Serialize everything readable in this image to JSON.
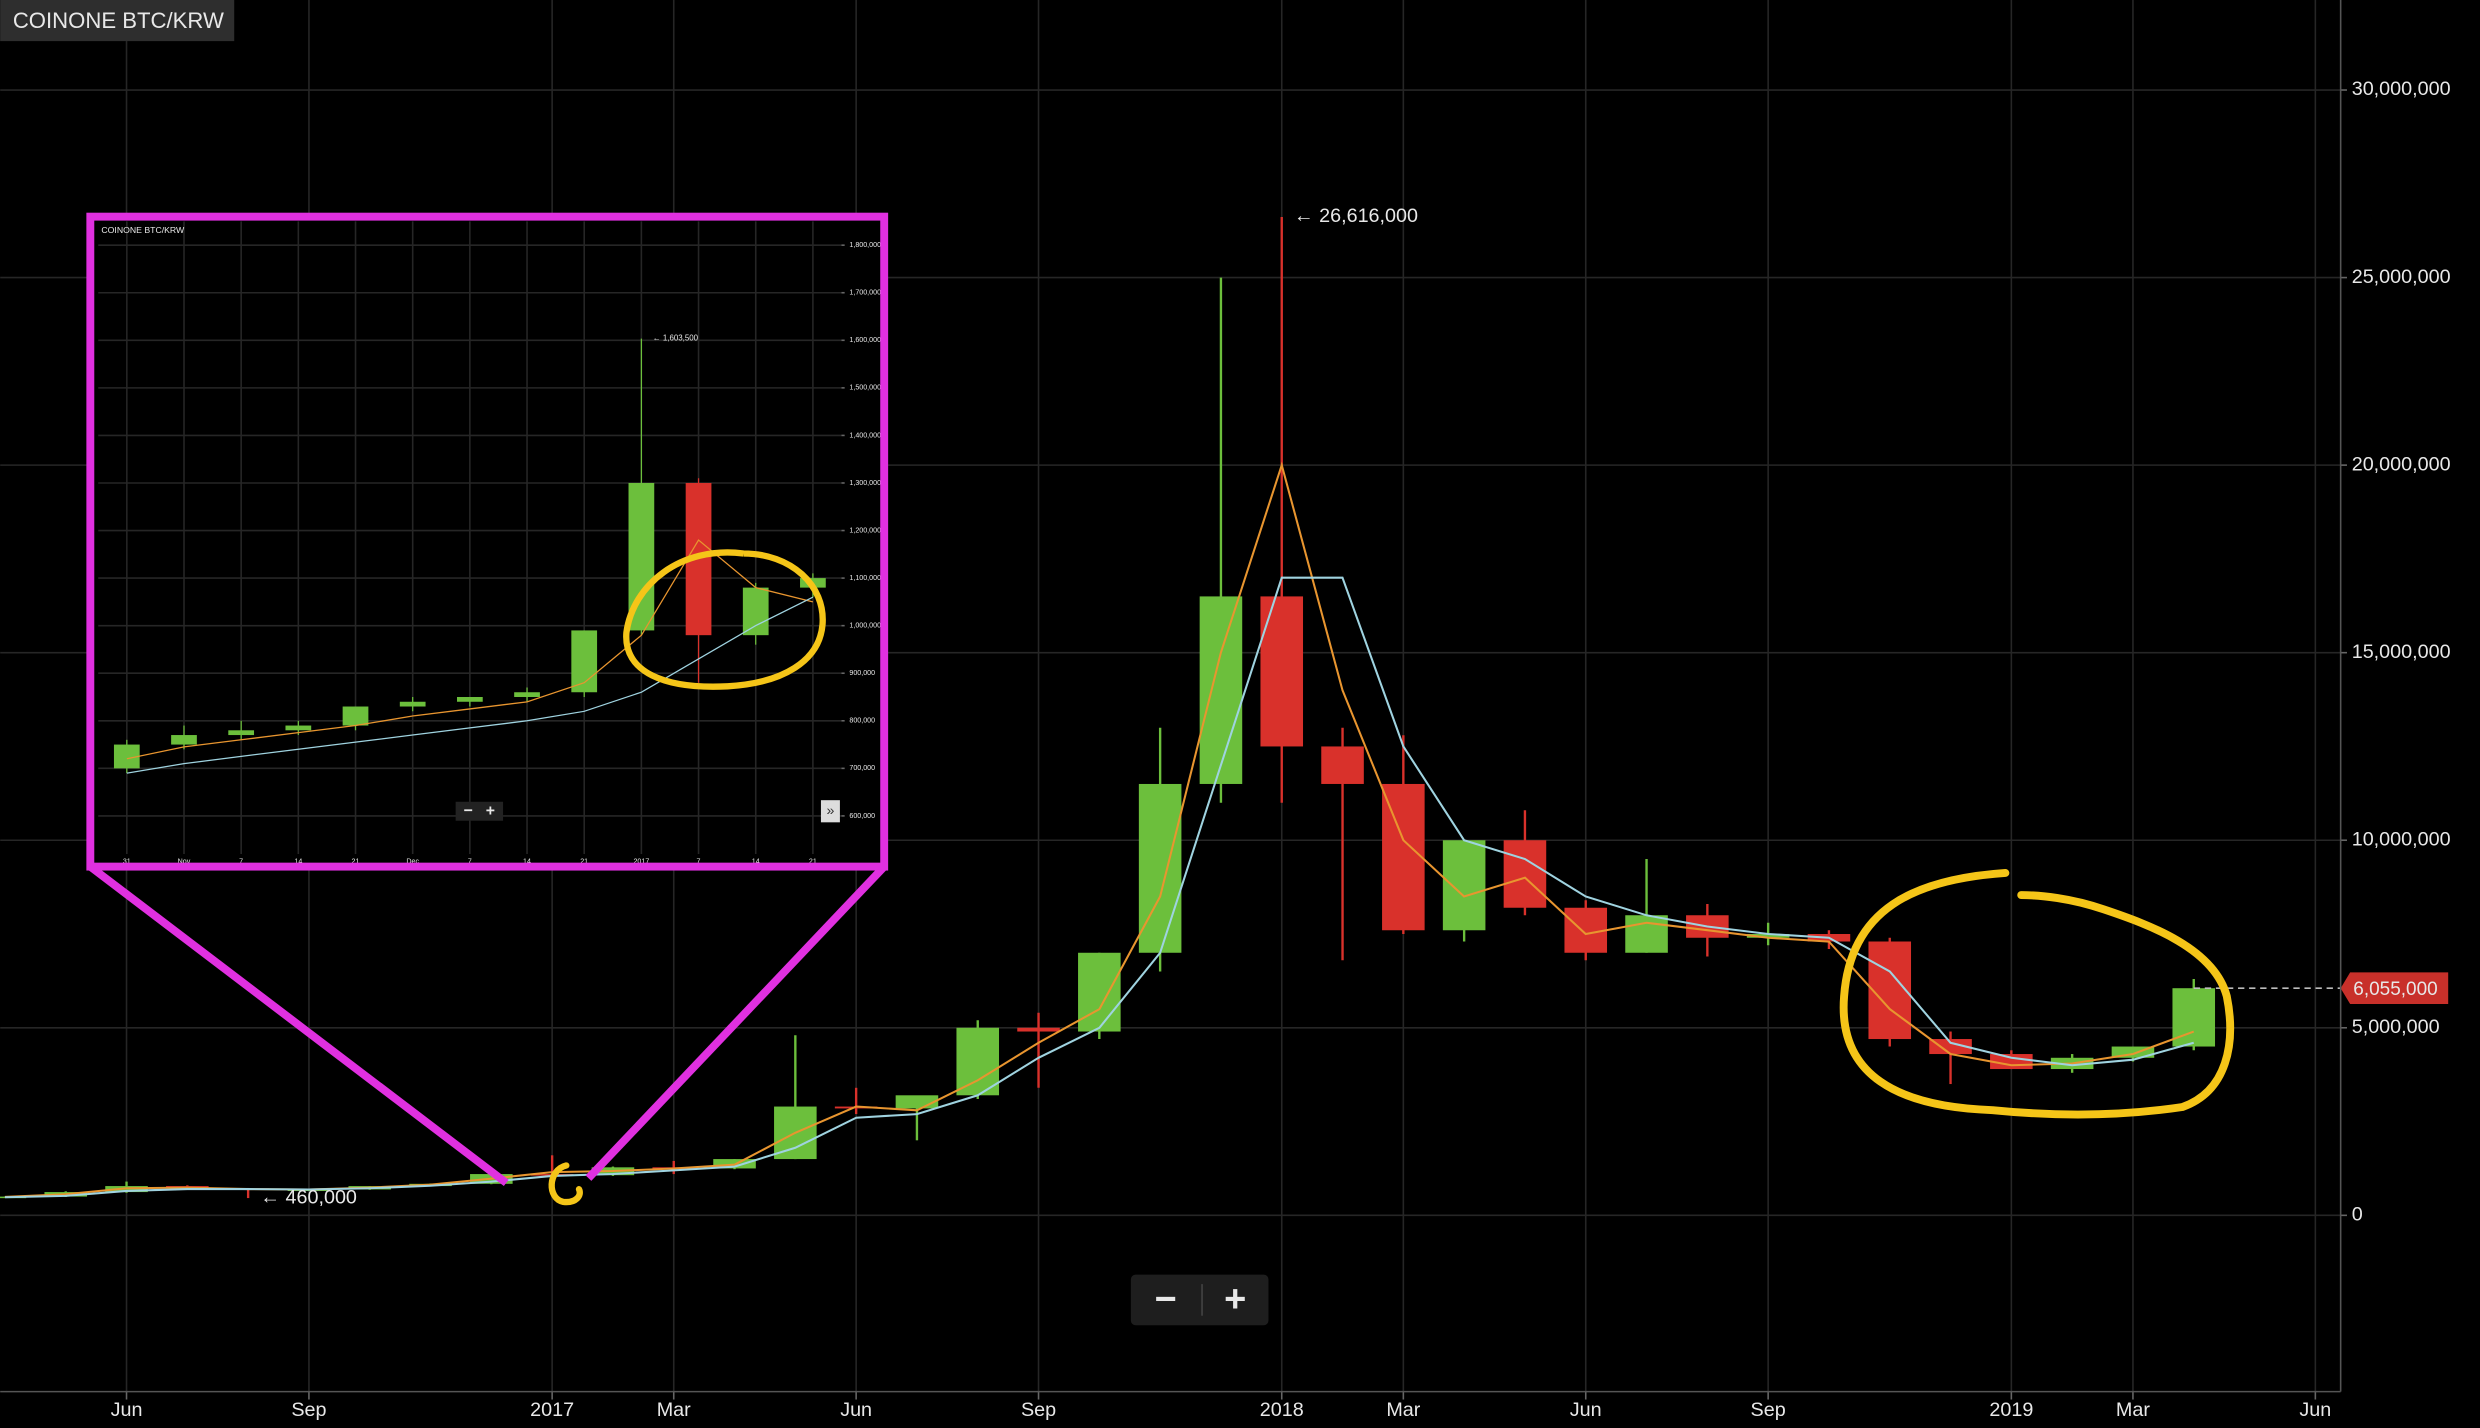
{
  "chart_data": [
    {
      "type": "candlestick",
      "title": "COINONE BTC/KRW",
      "x": [
        "2016-04",
        "2016-05",
        "2016-06",
        "2016-07",
        "2016-08",
        "2016-09",
        "2016-10",
        "2016-11",
        "2016-12",
        "2017-01",
        "2017-02",
        "2017-03",
        "2017-04",
        "2017-05",
        "2017-06",
        "2017-07",
        "2017-08",
        "2017-09",
        "2017-10",
        "2017-11",
        "2017-12",
        "2018-01",
        "2018-02",
        "2018-03",
        "2018-04",
        "2018-05",
        "2018-06",
        "2018-07",
        "2018-08",
        "2018-09",
        "2018-10",
        "2018-11",
        "2018-12",
        "2019-01",
        "2019-02",
        "2019-03",
        "2019-04"
      ],
      "open": [
        490000,
        500000,
        620000,
        780000,
        720000,
        680000,
        690000,
        780000,
        840000,
        1100000,
        1070000,
        1280000,
        1250000,
        1500000,
        2900000,
        2850000,
        3200000,
        5000000,
        4900000,
        7000000,
        11500000,
        16500000,
        12500000,
        11500000,
        7600000,
        10000000,
        8200000,
        7000000,
        8000000,
        7400000,
        7500000,
        7300000,
        4700000,
        4300000,
        3900000,
        4200000,
        4500000
      ],
      "high": [
        500000,
        640000,
        900000,
        800000,
        730000,
        700000,
        780000,
        850000,
        1100000,
        1600000,
        1300000,
        1450000,
        1500000,
        4800000,
        3400000,
        3100000,
        5200000,
        5400000,
        7000000,
        13000000,
        25000000,
        26616000,
        13000000,
        12800000,
        10000000,
        10800000,
        8400000,
        9500000,
        8300000,
        7800000,
        7600000,
        7400000,
        4900000,
        4400000,
        4300000,
        4500000,
        6300000
      ],
      "low": [
        480000,
        490000,
        600000,
        700000,
        460000,
        660000,
        680000,
        770000,
        830000,
        900000,
        1050000,
        1100000,
        1230000,
        1500000,
        2700000,
        2000000,
        3100000,
        3400000,
        4700000,
        6500000,
        11000000,
        11000000,
        6800000,
        7500000,
        7300000,
        8000000,
        6800000,
        7000000,
        6900000,
        7200000,
        7100000,
        4500000,
        3500000,
        3900000,
        3800000,
        4100000,
        4400000
      ],
      "close": [
        500000,
        620000,
        780000,
        720000,
        680000,
        690000,
        780000,
        840000,
        1100000,
        1070000,
        1280000,
        1250000,
        1500000,
        2900000,
        2850000,
        3200000,
        5000000,
        4900000,
        7000000,
        11500000,
        16500000,
        12500000,
        11500000,
        7600000,
        10000000,
        8200000,
        7000000,
        8000000,
        7400000,
        7500000,
        7300000,
        4700000,
        4300000,
        3900000,
        4200000,
        4500000,
        6055000
      ],
      "up_color": "#6cbf3c",
      "down_color": "#d9312b",
      "lines": [
        {
          "color": "#e8952f",
          "values": [
            490000,
            560000,
            720000,
            740000,
            700000,
            690000,
            740000,
            820000,
            980000,
            1150000,
            1180000,
            1250000,
            1350000,
            2200000,
            2900000,
            2800000,
            3600000,
            4600000,
            5500000,
            8500000,
            15000000,
            20000000,
            14000000,
            10000000,
            8500000,
            9000000,
            7500000,
            7800000,
            7600000,
            7400000,
            7300000,
            5500000,
            4300000,
            4000000,
            4050000,
            4300000,
            4900000
          ]
        },
        {
          "color": "#9fd3e0",
          "values": [
            480000,
            520000,
            650000,
            700000,
            700000,
            690000,
            720000,
            790000,
            900000,
            1050000,
            1100000,
            1200000,
            1300000,
            1800000,
            2600000,
            2700000,
            3200000,
            4200000,
            5000000,
            7000000,
            12000000,
            17000000,
            17000000,
            12500000,
            10000000,
            9500000,
            8500000,
            8000000,
            7700000,
            7500000,
            7400000,
            6500000,
            4600000,
            4200000,
            4000000,
            4150000,
            4600000
          ]
        }
      ],
      "xlim": [
        "2016-04",
        "2019-06"
      ],
      "xticks": [
        {
          "value": "2016-06",
          "label": "Jun"
        },
        {
          "value": "2016-09",
          "label": "Sep"
        },
        {
          "value": "2017-01",
          "label": "2017"
        },
        {
          "value": "2017-03",
          "label": "Mar"
        },
        {
          "value": "2017-06",
          "label": "Jun"
        },
        {
          "value": "2017-09",
          "label": "Sep"
        },
        {
          "value": "2018-01",
          "label": "2018"
        },
        {
          "value": "2018-03",
          "label": "Mar"
        },
        {
          "value": "2018-06",
          "label": "Jun"
        },
        {
          "value": "2018-09",
          "label": "Sep"
        },
        {
          "value": "2019-01",
          "label": "2019"
        },
        {
          "value": "2019-03",
          "label": "Mar"
        },
        {
          "value": "2019-06",
          "label": "Jun"
        }
      ],
      "ylim": [
        -4700000,
        32400000
      ],
      "yticks": [
        0,
        {
          "value": 5000000,
          "label": "5,000,000"
        },
        {
          "value": 10000000,
          "label": "10,000,000"
        },
        {
          "value": 15000000,
          "label": "15,000,000"
        },
        {
          "value": 20000000,
          "label": "20,000,000"
        },
        {
          "value": 25000000,
          "label": "25,000,000"
        },
        {
          "value": 30000000,
          "label": "30,000,000"
        }
      ],
      "grid": true,
      "annotations": [
        {
          "x": "2018-01",
          "value": 26616000,
          "label": "← 26,616,000"
        },
        {
          "x": "2016-08",
          "value": 460000,
          "label": "← 460,000"
        }
      ],
      "last_price": {
        "value": 6055000,
        "label": "6,055,000",
        "color": "#c8302a"
      },
      "zoom_buttons": [
        "−",
        "+"
      ]
    },
    {
      "type": "candlestick",
      "title": "COINONE BTC/KRW",
      "categories": [
        "31",
        "Nov",
        "7",
        "14",
        "21",
        "Dec",
        "7",
        "14",
        "21",
        "2017",
        "7",
        "14",
        "21"
      ],
      "open": [
        700000,
        750000,
        770000,
        780000,
        790000,
        830000,
        840000,
        850000,
        860000,
        990000,
        1300000,
        980000,
        1080000
      ],
      "high": [
        760000,
        790000,
        800000,
        800000,
        830000,
        850000,
        850000,
        870000,
        990000,
        1603500,
        1310000,
        1090000,
        1110000
      ],
      "low": [
        690000,
        740000,
        760000,
        770000,
        780000,
        820000,
        830000,
        840000,
        850000,
        980000,
        880000,
        960000,
        1060000
      ],
      "close": [
        750000,
        770000,
        780000,
        790000,
        830000,
        840000,
        850000,
        860000,
        990000,
        1300000,
        980000,
        1080000,
        1100000
      ],
      "up_color": "#6cbf3c",
      "down_color": "#d9312b",
      "lines": [
        {
          "color": "#e8952f",
          "values": [
            720000,
            745000,
            760000,
            775000,
            790000,
            810000,
            825000,
            840000,
            880000,
            980000,
            1180000,
            1080000,
            1050000
          ]
        },
        {
          "color": "#9fd3e0",
          "values": [
            690000,
            710000,
            725000,
            740000,
            755000,
            770000,
            785000,
            800000,
            820000,
            860000,
            930000,
            1000000,
            1060000
          ]
        }
      ],
      "ylim": [
        520000,
        1850000
      ],
      "yticks": [
        {
          "value": 600000,
          "label": "600,000"
        },
        {
          "value": 700000,
          "label": "700,000"
        },
        {
          "value": 800000,
          "label": "800,000"
        },
        {
          "value": 900000,
          "label": "900,000"
        },
        {
          "value": 1000000,
          "label": "1,000,000"
        },
        {
          "value": 1100000,
          "label": "1,100,000"
        },
        {
          "value": 1200000,
          "label": "1,200,000"
        },
        {
          "value": 1300000,
          "label": "1,300,000"
        },
        {
          "value": 1400000,
          "label": "1,400,000"
        },
        {
          "value": 1500000,
          "label": "1,500,000"
        },
        {
          "value": 1600000,
          "label": "1,600,000"
        },
        {
          "value": 1700000,
          "label": "1,700,000"
        },
        {
          "value": 1800000,
          "label": "1,800,000"
        }
      ],
      "grid": true,
      "annotations": [
        {
          "category": 9,
          "value": 1603500,
          "label": "← 1,603,500"
        }
      ],
      "zoom_buttons": [
        "−",
        "+",
        "»"
      ]
    }
  ]
}
